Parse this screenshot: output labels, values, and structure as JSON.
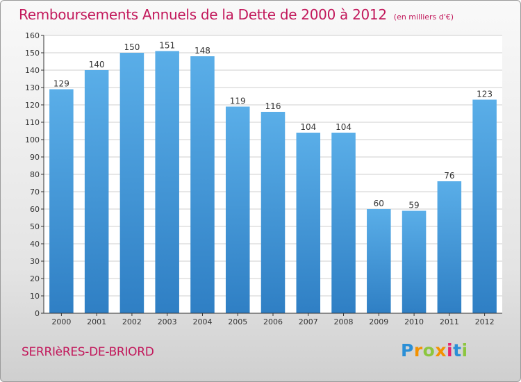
{
  "header": {
    "title": "Remboursements Annuels de la Dette de 2000 à 2012",
    "unit": "(en milliers d'€)"
  },
  "footer": {
    "commune": "SERRIèRES-DE-BRIORD",
    "brand": "Proxiti"
  },
  "colors": {
    "bar_light": "#5aaee8",
    "bar_dark": "#2f7fc4",
    "title": "#c2185b",
    "axis": "#333333",
    "grid": "#cfcfcf"
  },
  "chart_data": {
    "type": "bar",
    "title": "Remboursements Annuels de la Dette de 2000 à 2012",
    "xlabel": "",
    "ylabel": "",
    "ylim": [
      0,
      160
    ],
    "yticks": [
      0,
      10,
      20,
      30,
      40,
      50,
      60,
      70,
      80,
      90,
      100,
      110,
      120,
      130,
      140,
      150,
      160
    ],
    "grid": true,
    "categories": [
      "2000",
      "2001",
      "2002",
      "2003",
      "2004",
      "2005",
      "2006",
      "2007",
      "2008",
      "2009",
      "2010",
      "2011",
      "2012"
    ],
    "values": [
      129,
      140,
      150,
      151,
      148,
      119,
      116,
      104,
      104,
      60,
      59,
      76,
      123
    ],
    "data_labels": [
      "129",
      "140",
      "150",
      "151",
      "148",
      "119",
      "116",
      "104",
      "104",
      "60",
      "59",
      "76",
      "123"
    ]
  }
}
